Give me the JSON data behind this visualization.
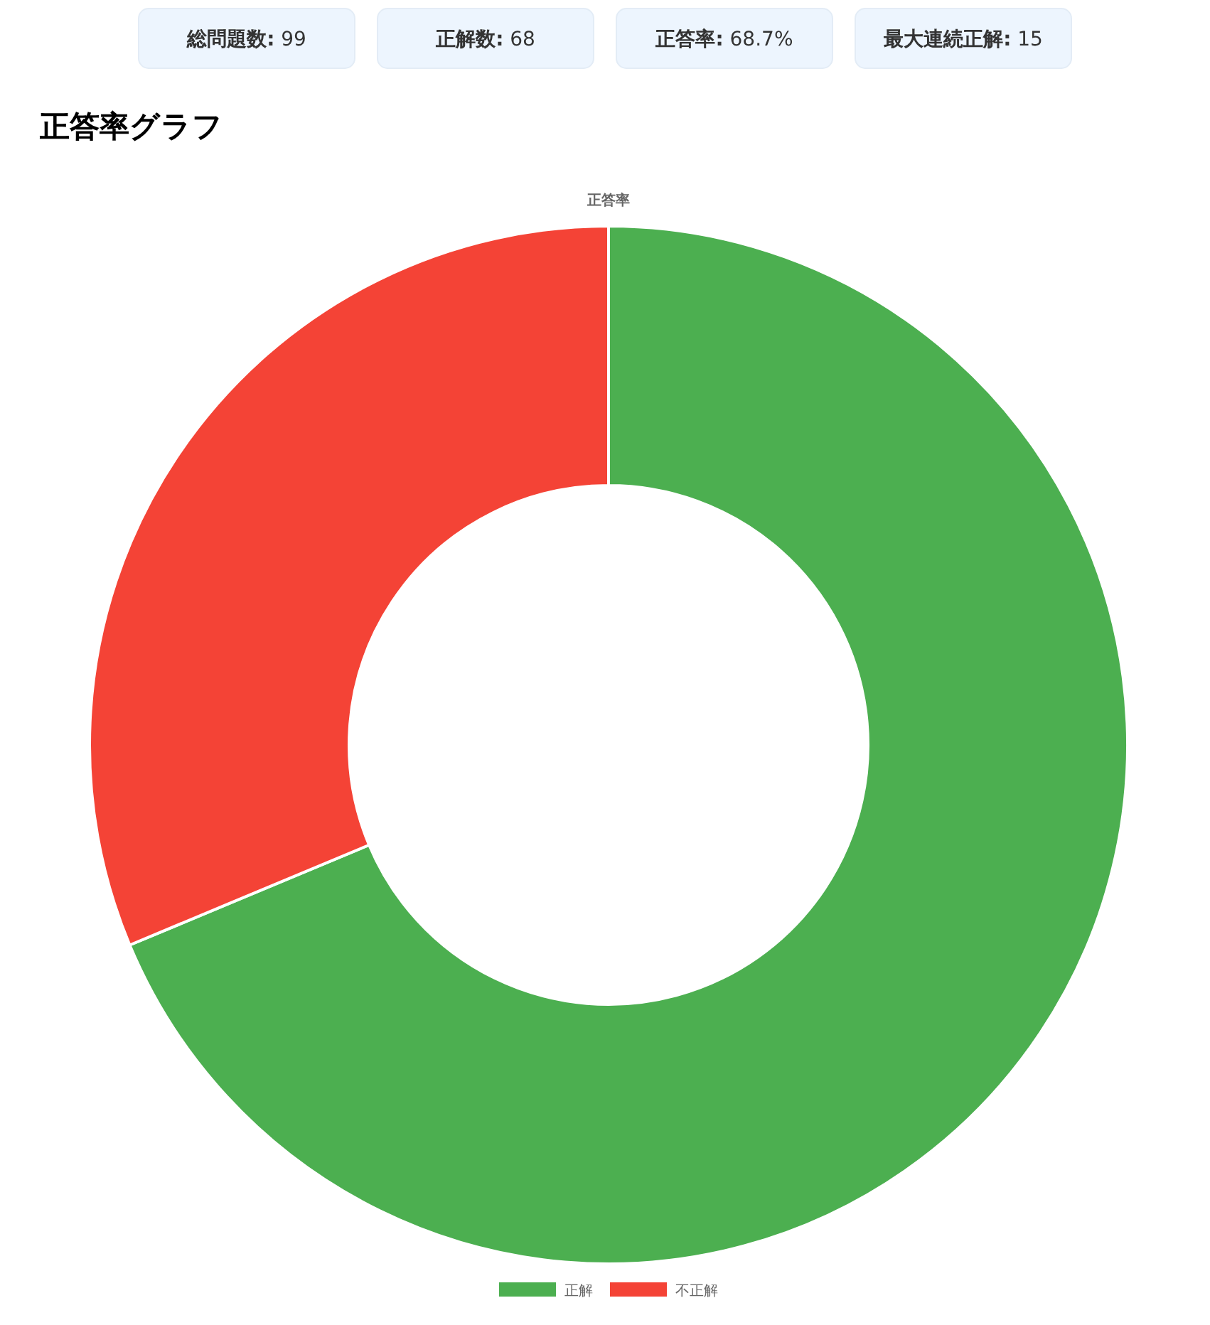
{
  "chart_data": [
    {
      "type": "other",
      "title": "総問題数:",
      "annotations": [
        "99"
      ]
    },
    {
      "type": "other",
      "title": "正解数:",
      "annotations": [
        "68"
      ]
    },
    {
      "type": "other",
      "title": "正答率:",
      "annotations": [
        "68.7%"
      ]
    },
    {
      "type": "other",
      "title": "最大連続正解:",
      "annotations": [
        "15"
      ]
    },
    {
      "type": "donut",
      "title": "正答率グラフ",
      "subtitle": "正答率",
      "categories": [
        "正解",
        "不正解"
      ],
      "values": [
        68.7,
        31.3
      ],
      "colors": [
        "#4caf50",
        "#f44336"
      ],
      "legend": "bottom"
    }
  ]
}
